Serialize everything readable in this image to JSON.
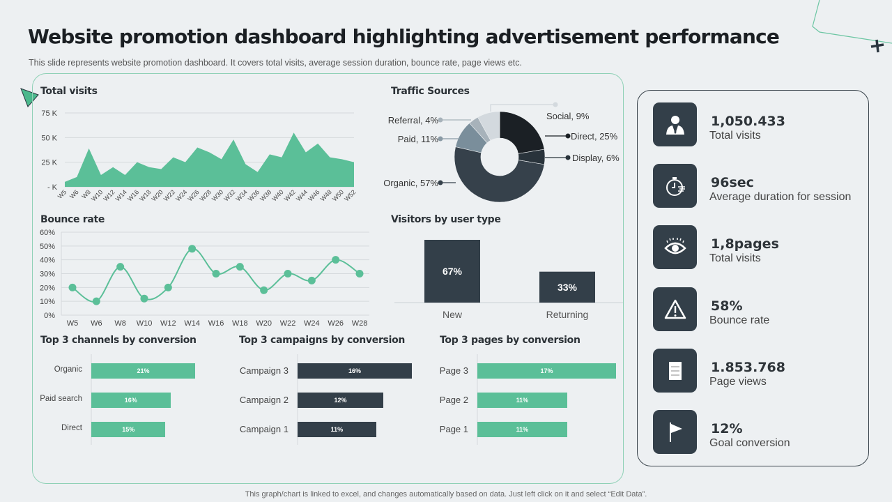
{
  "header": {
    "title": "Website promotion dashboard highlighting advertisement performance",
    "subtitle": "This slide represents website promotion dashboard. It covers total visits, average  session duration, bounce rate, page views etc."
  },
  "colors": {
    "accent": "#5bbf98",
    "dark": "#333f49",
    "background": "#edf0f2"
  },
  "chart_data": [
    {
      "id": "total_visits",
      "type": "area",
      "title": "Total visits",
      "categories": [
        "W5",
        "W6",
        "W8",
        "W10",
        "W12",
        "W14",
        "W16",
        "W18",
        "W20",
        "W22",
        "W24",
        "W26",
        "W28",
        "W30",
        "W32",
        "W34",
        "W36",
        "W38",
        "W40",
        "W42",
        "W44",
        "W46",
        "W48",
        "W50",
        "W52"
      ],
      "values": [
        5,
        10,
        39,
        12,
        20,
        12,
        25,
        20,
        18,
        30,
        25,
        40,
        35,
        28,
        48,
        23,
        15,
        33,
        30,
        55,
        35,
        44,
        30,
        28,
        25
      ],
      "unit": "K",
      "ylim": [
        0,
        75
      ],
      "yticks": [
        "75 K",
        "50 K",
        "25 K",
        "- K"
      ],
      "grid": true,
      "color": "#5bbf98"
    },
    {
      "id": "bounce_rate",
      "type": "line",
      "title": "Bounce rate",
      "categories": [
        "W5",
        "W6",
        "W8",
        "W10",
        "W12",
        "W14",
        "W16",
        "W18",
        "W20",
        "W22",
        "W24",
        "W26",
        "W28"
      ],
      "values": [
        20,
        10,
        35,
        12,
        20,
        48,
        30,
        35,
        18,
        30,
        25,
        40,
        30
      ],
      "ylim": [
        0,
        60
      ],
      "yticks": [
        "60%",
        "50%",
        "40%",
        "30%",
        "20%",
        "10%",
        "0%"
      ],
      "grid": true,
      "color": "#5bbf98"
    },
    {
      "id": "traffic_sources",
      "type": "pie",
      "title": "Traffic Sources",
      "donut": true,
      "slices": [
        {
          "name": "Direct",
          "value": 25,
          "label": "Direct, 25%",
          "color": "#1b2025"
        },
        {
          "name": "Display",
          "value": 6,
          "label": "Display, 6%",
          "color": "#29333b"
        },
        {
          "name": "Organic",
          "value": 57,
          "label": "Organic, 57%",
          "color": "#36414b"
        },
        {
          "name": "Paid",
          "value": 11,
          "label": "Paid, 11%",
          "color": "#7a8e9b"
        },
        {
          "name": "Referral",
          "value": 4,
          "label": "Referral, 4%",
          "color": "#a7b2ba"
        },
        {
          "name": "Social",
          "value": 9,
          "label": "Social, 9%",
          "color": "#d3d9de"
        }
      ]
    },
    {
      "id": "visitors_by_user_type",
      "type": "bar",
      "title": "Visitors by user type",
      "categories": [
        "New",
        "Returning"
      ],
      "values": [
        67,
        33
      ],
      "labels": [
        "67%",
        "33%"
      ],
      "color": "#333f49"
    },
    {
      "id": "top_channels",
      "type": "bar",
      "orientation": "horizontal",
      "title": "Top 3 channels by conversion",
      "categories": [
        "Organic",
        "Paid search",
        "Direct"
      ],
      "values": [
        21,
        16,
        15
      ],
      "labels": [
        "21%",
        "16%",
        "15%"
      ],
      "color": "#5bbf98"
    },
    {
      "id": "top_campaigns",
      "type": "bar",
      "orientation": "horizontal",
      "title": "Top 3 campaigns by conversion",
      "categories": [
        "Campaign 3",
        "Campaign 2",
        "Campaign 1"
      ],
      "values": [
        16,
        12,
        11
      ],
      "labels": [
        "16%",
        "12%",
        "11%"
      ],
      "color": "#333f49"
    },
    {
      "id": "top_pages",
      "type": "bar",
      "orientation": "horizontal",
      "title": "Top 3 pages by conversion",
      "categories": [
        "Page 3",
        "Page 2",
        "Page 1"
      ],
      "values": [
        17,
        11,
        11
      ],
      "labels": [
        "17%",
        "11%",
        "11%"
      ],
      "color": "#5bbf98"
    }
  ],
  "kpis": [
    {
      "value": "1,050.433",
      "caption": "Total visits",
      "icon": "businessman-icon"
    },
    {
      "value": "96sec",
      "caption": "Average duration for session",
      "icon": "stopwatch-icon"
    },
    {
      "value": "1,8pages",
      "caption": "Total visits",
      "icon": "eye-icon"
    },
    {
      "value": "58%",
      "caption": "Bounce rate",
      "icon": "warning-icon"
    },
    {
      "value": "1.853.768",
      "caption": "Page views",
      "icon": "clipboard-icon"
    },
    {
      "value": "12%",
      "caption": "Goal conversion",
      "icon": "flag-icon"
    }
  ],
  "footer": "This graph/chart is linked to excel, and changes automatically based on data. Just left click on it and select “Edit Data”."
}
